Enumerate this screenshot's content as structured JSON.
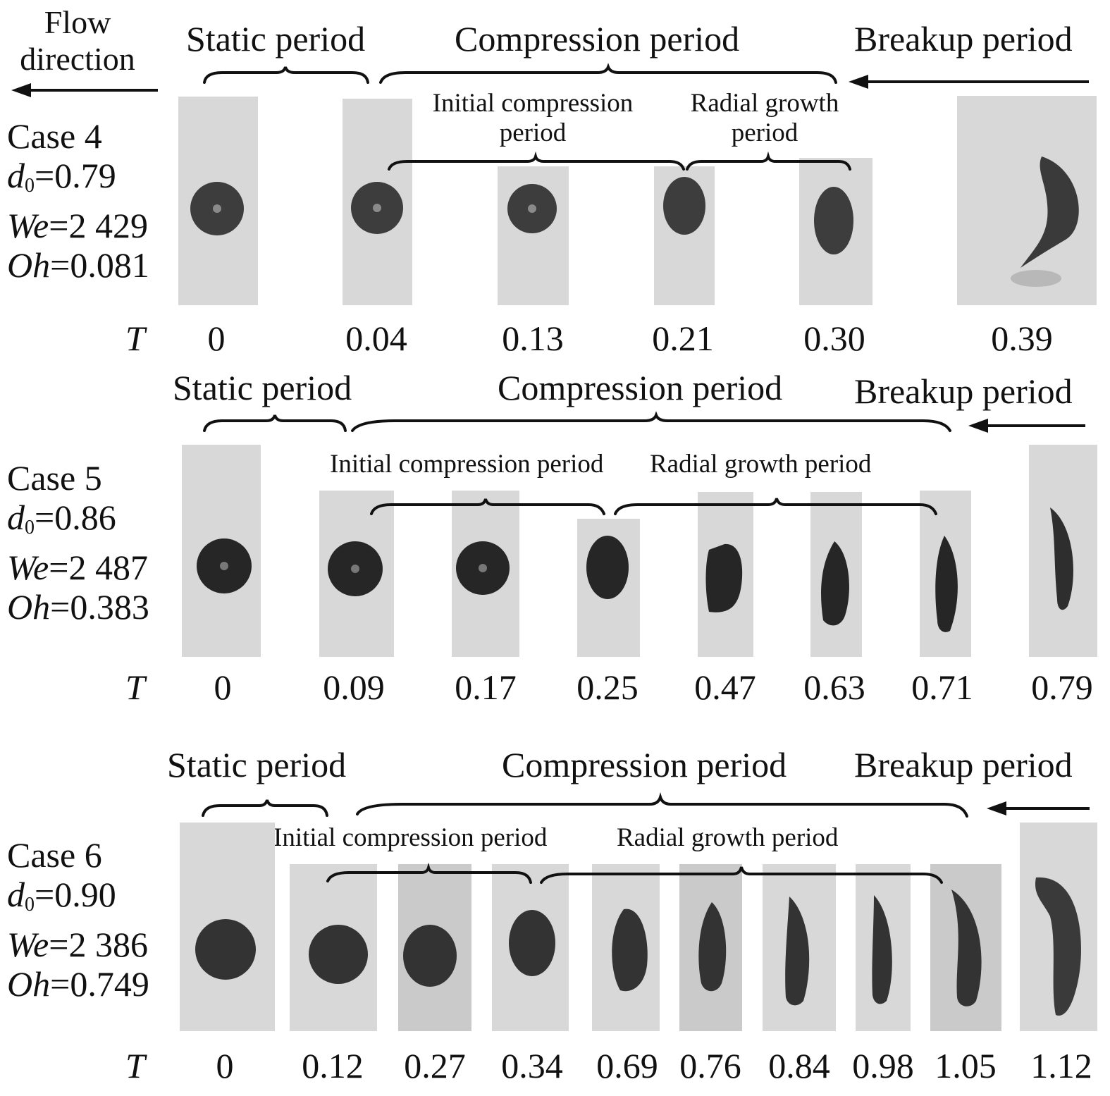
{
  "flow_direction": {
    "line1": "Flow",
    "line2": "direction"
  },
  "t_label": "T",
  "cases": [
    {
      "name": "Case 4",
      "d0": "0.79",
      "We": "2 429",
      "Oh": "0.081",
      "periods": {
        "static": "Static period",
        "compression": "Compression period",
        "breakup": "Breakup period",
        "initial_compression": "Initial compression period",
        "radial_growth": "Radial growth period"
      },
      "times": [
        "0",
        "0.04",
        "0.13",
        "0.21",
        "0.30",
        "0.39"
      ]
    },
    {
      "name": "Case 5",
      "d0": "0.86",
      "We": "2 487",
      "Oh": "0.383",
      "periods": {
        "static": "Static period",
        "compression": "Compression period",
        "breakup": "Breakup period",
        "initial_compression": "Initial compression period",
        "radial_growth": "Radial growth period"
      },
      "times": [
        "0",
        "0.09",
        "0.17",
        "0.25",
        "0.47",
        "0.63",
        "0.71",
        "0.79"
      ]
    },
    {
      "name": "Case 6",
      "d0": "0.90",
      "We": "2 386",
      "Oh": "0.749",
      "periods": {
        "static": "Static period",
        "compression": "Compression period",
        "breakup": "Breakup period",
        "initial_compression": "Initial compression period",
        "radial_growth": "Radial growth period"
      },
      "times": [
        "0",
        "0.12",
        "0.27",
        "0.34",
        "0.69",
        "0.76",
        "0.84",
        "0.98",
        "1.05",
        "1.12"
      ]
    }
  ]
}
